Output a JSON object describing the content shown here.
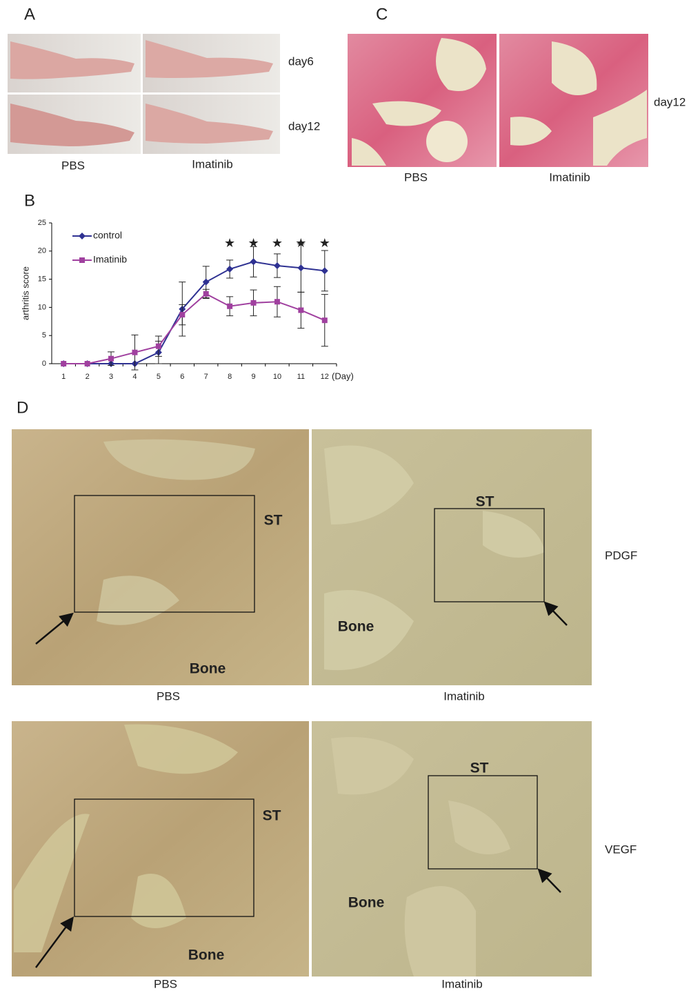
{
  "panel_a": {
    "label": "A",
    "rows": [
      "day6",
      "day12"
    ],
    "columns": [
      "PBS",
      "Imatinib"
    ]
  },
  "panel_b": {
    "label": "B"
  },
  "chart_data": {
    "type": "line",
    "y_label": "arthritis score",
    "x_label": "(Day)",
    "categories": [
      "1",
      "2",
      "3",
      "4",
      "5",
      "6",
      "7",
      "8",
      "9",
      "10",
      "11",
      "12"
    ],
    "ylim": [
      0,
      25
    ],
    "yticks": [
      0,
      5,
      10,
      15,
      20,
      25
    ],
    "series": [
      {
        "name": "control",
        "color": "#2e3192",
        "marker": "diamond",
        "values": [
          0,
          0,
          0,
          0,
          2,
          9.7,
          14.5,
          16.8,
          18.1,
          17.4,
          17,
          16.5
        ],
        "errors": [
          0,
          0,
          0,
          0,
          2,
          4.8,
          2.8,
          1.6,
          2.7,
          2.1,
          4.3,
          3.6
        ]
      },
      {
        "name": "Imatinib",
        "color": "#a0409f",
        "marker": "square",
        "values": [
          0,
          0,
          0.9,
          2,
          3.1,
          8.7,
          12.4,
          10.2,
          10.8,
          11,
          9.5,
          7.7
        ],
        "errors": [
          0,
          0,
          1.2,
          3.1,
          1.8,
          1.8,
          0.8,
          1.7,
          2.3,
          2.7,
          3.2,
          4.6
        ]
      }
    ],
    "significance": {
      "categories": [
        "8",
        "9",
        "10",
        "11",
        "12"
      ],
      "labels": [
        "★",
        "★",
        "★",
        "★",
        "★"
      ]
    }
  },
  "panel_c": {
    "label": "C",
    "row": "day12",
    "columns": [
      "PBS",
      "Imatinib"
    ]
  },
  "panel_d": {
    "label": "D",
    "rows": [
      {
        "stain": "PDGF",
        "columns": [
          "PBS",
          "Imatinib"
        ],
        "images": [
          {
            "labels": [
              "ST",
              "Bone"
            ]
          },
          {
            "labels": [
              "ST",
              "Bone"
            ]
          }
        ]
      },
      {
        "stain": "VEGF",
        "columns": [
          "PBS",
          "Imatinib"
        ],
        "images": [
          {
            "labels": [
              "ST",
              "Bone"
            ]
          },
          {
            "labels": [
              "ST",
              "Bone"
            ]
          }
        ]
      }
    ]
  }
}
